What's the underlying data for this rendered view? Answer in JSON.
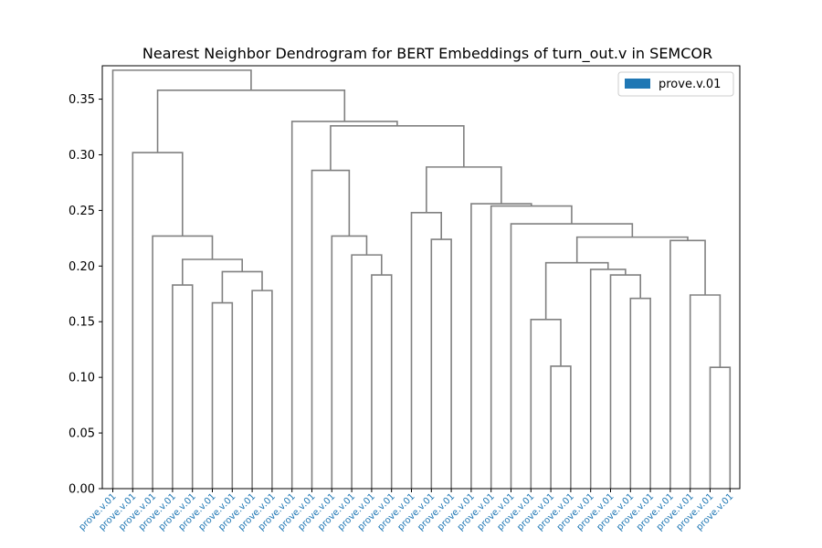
{
  "chart_data": {
    "type": "dendrogram",
    "title": "Nearest Neighbor Dendrogram for BERT Embeddings of turn_out.v in SEMCOR",
    "xlabel": "",
    "ylabel": "",
    "ylim": [
      0,
      0.38
    ],
    "yticks": [
      "0.00",
      "0.05",
      "0.10",
      "0.15",
      "0.20",
      "0.25",
      "0.30",
      "0.35"
    ],
    "leaf_labels": [
      "prove.v.01",
      "prove.v.01",
      "prove.v.01",
      "prove.v.01",
      "prove.v.01",
      "prove.v.01",
      "prove.v.01",
      "prove.v.01",
      "prove.v.01",
      "prove.v.01",
      "prove.v.01",
      "prove.v.01",
      "prove.v.01",
      "prove.v.01",
      "prove.v.01",
      "prove.v.01",
      "prove.v.01",
      "prove.v.01",
      "prove.v.01",
      "prove.v.01",
      "prove.v.01",
      "prove.v.01",
      "prove.v.01",
      "prove.v.01",
      "prove.v.01",
      "prove.v.01",
      "prove.v.01",
      "prove.v.01",
      "prove.v.01",
      "prove.v.01",
      "prove.v.01",
      "prove.v.01"
    ],
    "merges": [
      {
        "a": [
          "leaf",
          3
        ],
        "b": [
          "leaf",
          4
        ],
        "height": 0.183
      },
      {
        "a": [
          "leaf",
          5
        ],
        "b": [
          "leaf",
          6
        ],
        "height": 0.167
      },
      {
        "a": [
          "leaf",
          7
        ],
        "b": [
          "leaf",
          8
        ],
        "height": 0.178
      },
      {
        "a": [
          "node",
          1
        ],
        "b": [
          "node",
          2
        ],
        "height": 0.195
      },
      {
        "a": [
          "node",
          0
        ],
        "b": [
          "node",
          3
        ],
        "height": 0.206
      },
      {
        "a": [
          "leaf",
          2
        ],
        "b": [
          "node",
          4
        ],
        "height": 0.227
      },
      {
        "a": [
          "leaf",
          1
        ],
        "b": [
          "node",
          5
        ],
        "height": 0.302
      },
      {
        "a": [
          "leaf",
          13
        ],
        "b": [
          "leaf",
          14
        ],
        "height": 0.192
      },
      {
        "a": [
          "leaf",
          12
        ],
        "b": [
          "node",
          7
        ],
        "height": 0.21
      },
      {
        "a": [
          "leaf",
          11
        ],
        "b": [
          "node",
          8
        ],
        "height": 0.227
      },
      {
        "a": [
          "leaf",
          10
        ],
        "b": [
          "node",
          9
        ],
        "height": 0.286
      },
      {
        "a": [
          "leaf",
          16
        ],
        "b": [
          "leaf",
          17
        ],
        "height": 0.224
      },
      {
        "a": [
          "leaf",
          15
        ],
        "b": [
          "node",
          11
        ],
        "height": 0.248
      },
      {
        "a": [
          "leaf",
          22
        ],
        "b": [
          "leaf",
          23
        ],
        "height": 0.11
      },
      {
        "a": [
          "leaf",
          21
        ],
        "b": [
          "node",
          13
        ],
        "height": 0.152
      },
      {
        "a": [
          "leaf",
          26
        ],
        "b": [
          "leaf",
          27
        ],
        "height": 0.171
      },
      {
        "a": [
          "leaf",
          25
        ],
        "b": [
          "node",
          15
        ],
        "height": 0.192
      },
      {
        "a": [
          "leaf",
          24
        ],
        "b": [
          "node",
          16
        ],
        "height": 0.197
      },
      {
        "a": [
          "node",
          14
        ],
        "b": [
          "node",
          17
        ],
        "height": 0.203
      },
      {
        "a": [
          "leaf",
          30
        ],
        "b": [
          "leaf",
          31
        ],
        "height": 0.109
      },
      {
        "a": [
          "leaf",
          29
        ],
        "b": [
          "node",
          19
        ],
        "height": 0.174
      },
      {
        "a": [
          "leaf",
          28
        ],
        "b": [
          "node",
          20
        ],
        "height": 0.223
      },
      {
        "a": [
          "node",
          18
        ],
        "b": [
          "node",
          21
        ],
        "height": 0.226
      },
      {
        "a": [
          "leaf",
          20
        ],
        "b": [
          "node",
          22
        ],
        "height": 0.238
      },
      {
        "a": [
          "leaf",
          19
        ],
        "b": [
          "node",
          23
        ],
        "height": 0.254
      },
      {
        "a": [
          "leaf",
          18
        ],
        "b": [
          "node",
          24
        ],
        "height": 0.256
      },
      {
        "a": [
          "node",
          12
        ],
        "b": [
          "node",
          25
        ],
        "height": 0.289
      },
      {
        "a": [
          "node",
          10
        ],
        "b": [
          "node",
          26
        ],
        "height": 0.326
      },
      {
        "a": [
          "leaf",
          9
        ],
        "b": [
          "node",
          27
        ],
        "height": 0.33
      },
      {
        "a": [
          "node",
          6
        ],
        "b": [
          "node",
          28
        ],
        "height": 0.358
      },
      {
        "a": [
          "leaf",
          0
        ],
        "b": [
          "node",
          29
        ],
        "height": 0.376
      }
    ],
    "link_color": "#808080",
    "legend": {
      "position": "top-right",
      "entries": [
        {
          "label": "prove.v.01",
          "color": "#1f77b4"
        }
      ]
    },
    "label_color": "#1f77b4",
    "grid": false
  }
}
